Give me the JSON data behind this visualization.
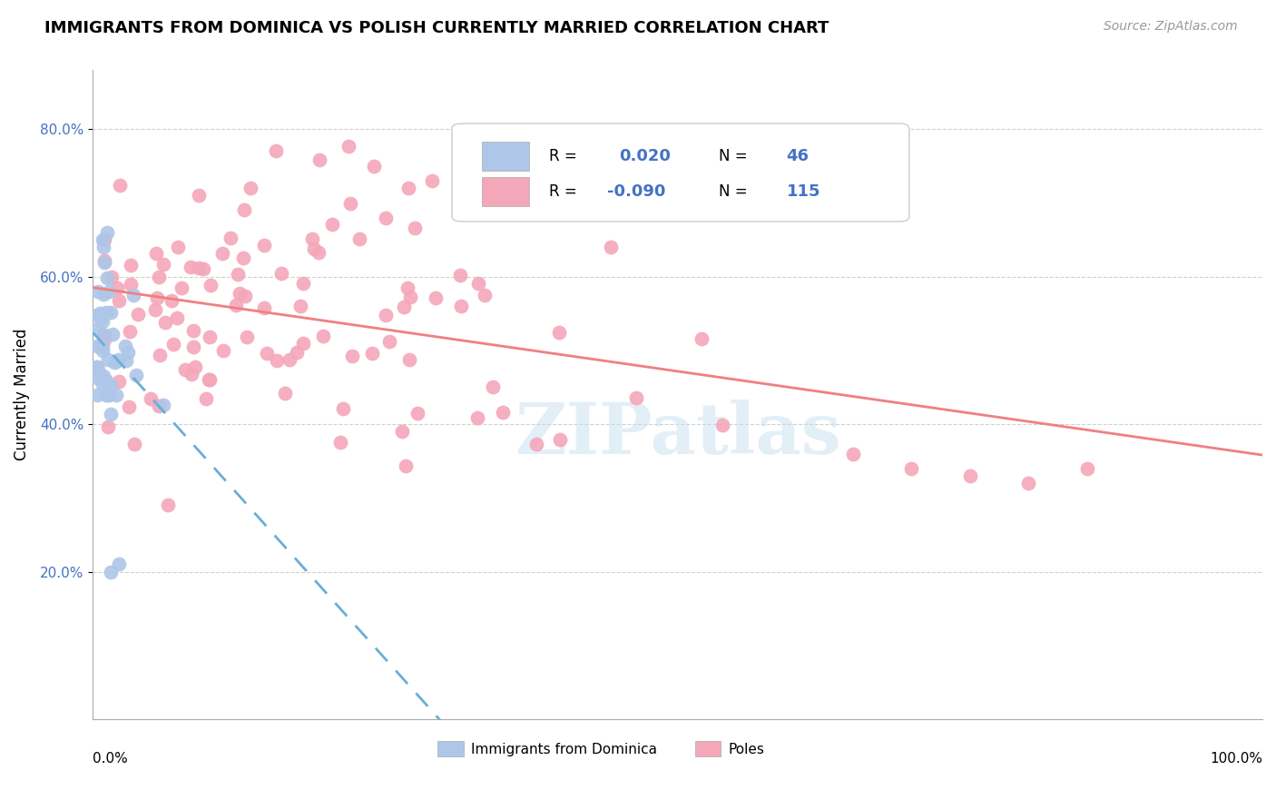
{
  "title": "IMMIGRANTS FROM DOMINICA VS POLISH CURRENTLY MARRIED CORRELATION CHART",
  "source": "Source: ZipAtlas.com",
  "ylabel": "Currently Married",
  "xlabel_bottom_left": "0.0%",
  "xlabel_bottom_right": "100.0%",
  "legend_label1": "Immigrants from Dominica",
  "legend_label2": "Poles",
  "ylim": [
    0.0,
    0.88
  ],
  "xlim": [
    0.0,
    1.0
  ],
  "yticks": [
    0.2,
    0.4,
    0.6,
    0.8
  ],
  "ytick_labels": [
    "20.0%",
    "40.0%",
    "60.0%",
    "80.0%"
  ],
  "color_blue": "#aec6e8",
  "color_pink": "#f4a7b9",
  "watermark": "ZIPatlas"
}
